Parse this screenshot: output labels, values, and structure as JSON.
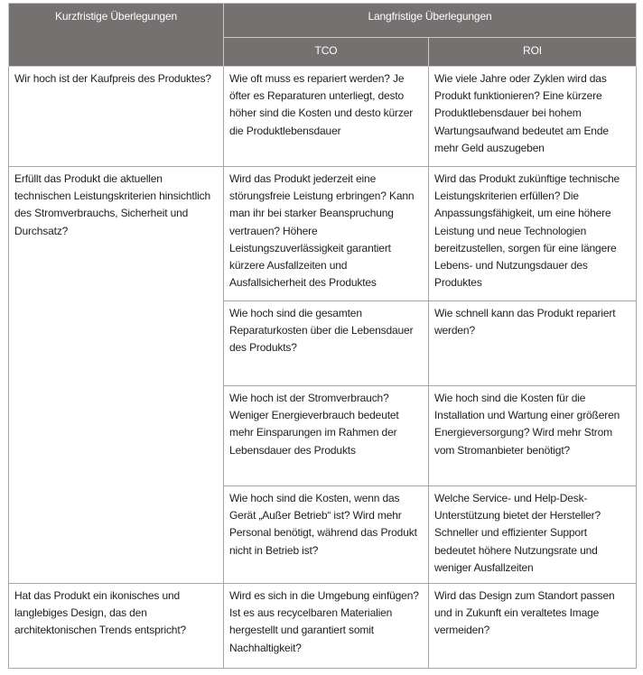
{
  "header": {
    "short_term": "Kurzfristige Überlegungen",
    "long_term": "Langfristige Überlegungen",
    "tco": "TCO",
    "roi": "ROI"
  },
  "rows": [
    {
      "short": "Wir hoch ist der Kaufpreis des Produktes?",
      "tco": "Wie oft muss es repariert werden? Je öfter es Reparaturen unterliegt, desto höher sind die Kosten und desto kürzer die Produktlebensdauer",
      "roi": "Wie viele Jahre oder Zyklen wird das Produkt funktionieren? Eine kürzere Produktlebensdauer bei hohem Wartungsaufwand bedeutet am Ende mehr Geld auszugeben"
    },
    {
      "short": "Erfüllt das Produkt die aktuellen technischen Leistungskriterien hinsichtlich des Stromverbrauchs, Sicherheit und Durchsatz?",
      "tco": "Wird das Produkt jederzeit eine störungsfreie Leistung erbringen? Kann man ihr bei starker Beanspruchung vertrauen? Höhere Leistungszuverlässigkeit garantiert kürzere Ausfallzeiten und Ausfallsicherheit des Produktes",
      "roi": "Wird das Produkt zukünftige technische Leistungskriterien erfüllen? Die Anpassungsfähigkeit, um eine höhere Leistung und neue Technologien bereitzustellen, sorgen für eine längere Lebens- und Nutzungsdauer des Produktes"
    },
    {
      "short": "",
      "tco": "Wie hoch sind die gesamten Reparaturkosten über die Lebensdauer des Produkts?",
      "roi": "Wie schnell kann das Produkt repariert werden?"
    },
    {
      "short": "",
      "tco": "Wie hoch ist der Stromverbrauch? Weniger Energieverbrauch bedeutet mehr Einsparungen im Rahmen der Lebensdauer des Produkts",
      "roi": "Wie hoch sind die Kosten für die Installation und Wartung einer größeren Energieversorgung? Wird mehr Strom vom Stromanbieter benötigt?"
    },
    {
      "short": "",
      "tco": "Wie hoch sind die Kosten, wenn das Gerät „Außer Betrieb“ ist? Wird mehr Personal benötigt, während das Produkt nicht in Betrieb ist?",
      "roi": "Welche Service- und Help-Desk-Unterstützung bietet der Hersteller? Schneller und effizienter Support bedeutet höhere Nutzungsrate und weniger Ausfallzeiten"
    },
    {
      "short": "Hat das Produkt ein ikonisches und langlebiges Design, das den architektonischen Trends entspricht?",
      "tco": "Wird es sich in die Umgebung einfügen? Ist es aus recycelbaren Materialien hergestellt und garantiert somit Nachhaltigkeit?",
      "roi": "Wird das Design zum Standort passen und in Zukunft ein veraltetes Image vermeiden?"
    }
  ],
  "colors": {
    "header_bg": "#767171",
    "header_text": "#ffffff",
    "border": "#a6a6a6"
  }
}
